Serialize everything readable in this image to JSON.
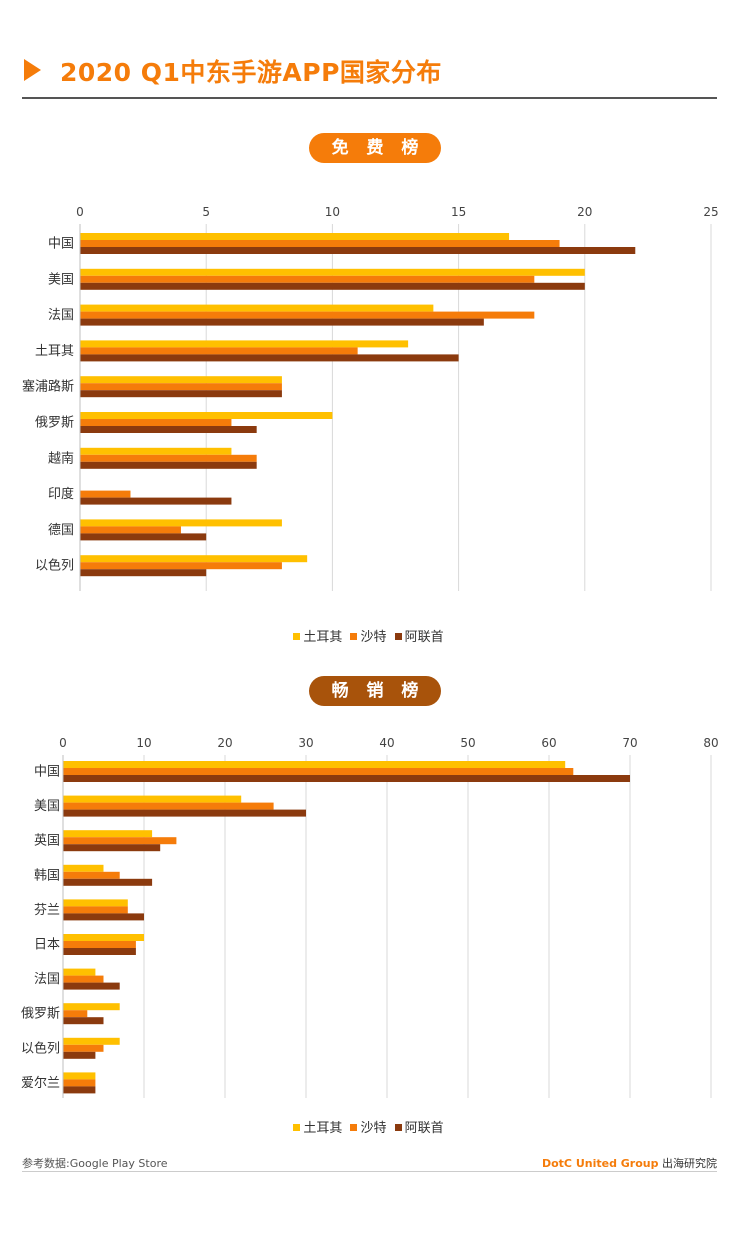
{
  "header": {
    "title": "2020 Q1中东手游APP国家分布"
  },
  "colors": {
    "turkey": "#ffc000",
    "saudi": "#f57c0a",
    "uae": "#8b3a0e",
    "grid": "#d9d9d9",
    "accent": "#f57c0a"
  },
  "legend": {
    "turkey": "土耳其",
    "saudi": "沙特",
    "uae": "阿联首"
  },
  "section1": {
    "label": "免 费 榜"
  },
  "section2": {
    "label": "畅 销 榜"
  },
  "footer": {
    "source": "参考数据:Google Play Store",
    "brand": "DotC United Group",
    "institute": "出海研究院"
  },
  "chart_data": [
    {
      "type": "bar",
      "orientation": "horizontal",
      "title": "免费榜",
      "categories": [
        "中国",
        "美国",
        "法国",
        "土耳其",
        "塞浦路斯",
        "俄罗斯",
        "越南",
        "印度",
        "德国",
        "以色列"
      ],
      "series": [
        {
          "name": "土耳其",
          "values": [
            17,
            20,
            14,
            13,
            8,
            10,
            6,
            0,
            8,
            9
          ]
        },
        {
          "name": "沙特",
          "values": [
            19,
            18,
            18,
            11,
            8,
            6,
            7,
            2,
            4,
            8
          ]
        },
        {
          "name": "阿联首",
          "values": [
            22,
            20,
            16,
            15,
            8,
            7,
            7,
            6,
            5,
            5
          ]
        }
      ],
      "xlim": [
        0,
        25
      ],
      "ticks": [
        0,
        5,
        10,
        15,
        20,
        25
      ],
      "tick_labels": [
        "0",
        "5",
        "10",
        "15",
        "20",
        "25"
      ],
      "axis_position": "top",
      "grid": true,
      "legend_position": "bottom-center"
    },
    {
      "type": "bar",
      "orientation": "horizontal",
      "title": "畅销榜",
      "categories": [
        "中国",
        "美国",
        "英国",
        "韩国",
        "芬兰",
        "日本",
        "法国",
        "俄罗斯",
        "以色列",
        "爱尔兰"
      ],
      "series": [
        {
          "name": "土耳其",
          "values": [
            62,
            22,
            11,
            5,
            8,
            10,
            4,
            7,
            7,
            4
          ]
        },
        {
          "name": "沙特",
          "values": [
            63,
            26,
            14,
            7,
            8,
            9,
            5,
            3,
            5,
            4
          ]
        },
        {
          "name": "阿联首",
          "values": [
            70,
            30,
            12,
            11,
            10,
            9,
            7,
            5,
            4,
            4
          ]
        }
      ],
      "xlim": [
        0,
        80
      ],
      "ticks": [
        0,
        10,
        20,
        30,
        40,
        50,
        60,
        70,
        80
      ],
      "tick_labels": [
        "0",
        "10",
        "20",
        "30",
        "40",
        "50",
        "60",
        "70",
        "80"
      ],
      "axis_position": "top",
      "grid": true,
      "legend_position": "bottom-center"
    }
  ]
}
